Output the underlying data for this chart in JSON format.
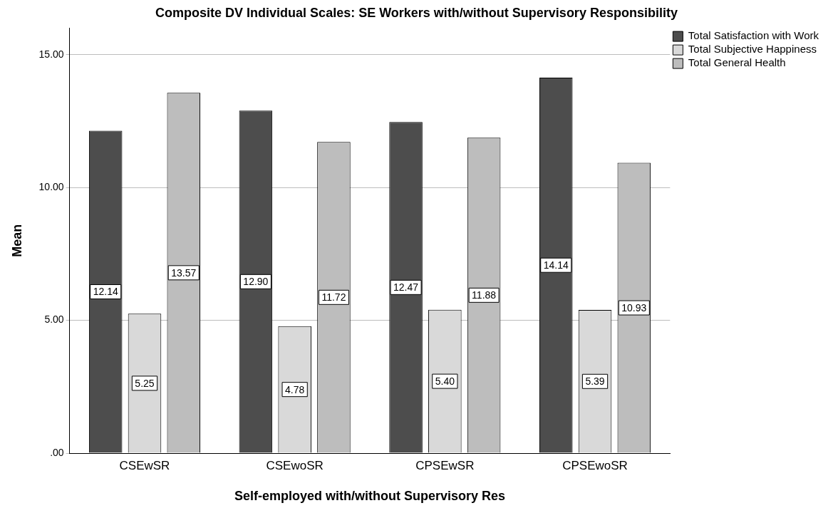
{
  "chart_data": {
    "type": "bar",
    "title": "Composite DV Individual Scales: SE Workers with/without Supervisory Responsibility",
    "xlabel": "Self-employed with/without Supervisory Res",
    "ylabel": "Mean",
    "categories": [
      "CSEwSR",
      "CSEwoSR",
      "CPSEwSR",
      "CPSEwoSR"
    ],
    "series": [
      {
        "name": "Total Satisfaction with Work",
        "color": "#4d4d4d",
        "values": [
          12.14,
          12.9,
          12.47,
          14.14
        ],
        "value_labels": [
          "12.14",
          "12.90",
          "12.47",
          "14.14"
        ]
      },
      {
        "name": "Total Subjective Happiness",
        "color": "#d9d9d9",
        "values": [
          5.25,
          4.78,
          5.4,
          5.39
        ],
        "value_labels": [
          "5.25",
          "4.78",
          "5.40",
          "5.39"
        ]
      },
      {
        "name": "Total General Health",
        "color": "#bdbdbd",
        "values": [
          13.57,
          11.72,
          11.88,
          10.93
        ],
        "value_labels": [
          "13.57",
          "11.72",
          "11.88",
          "10.93"
        ]
      }
    ],
    "ylim": [
      0,
      16
    ],
    "yticks": [
      {
        "value": 0,
        "label": ".00"
      },
      {
        "value": 5,
        "label": "5.00"
      },
      {
        "value": 10,
        "label": "10.00"
      },
      {
        "value": 15,
        "label": "15.00"
      }
    ],
    "grid": "y",
    "legend": "top right"
  }
}
